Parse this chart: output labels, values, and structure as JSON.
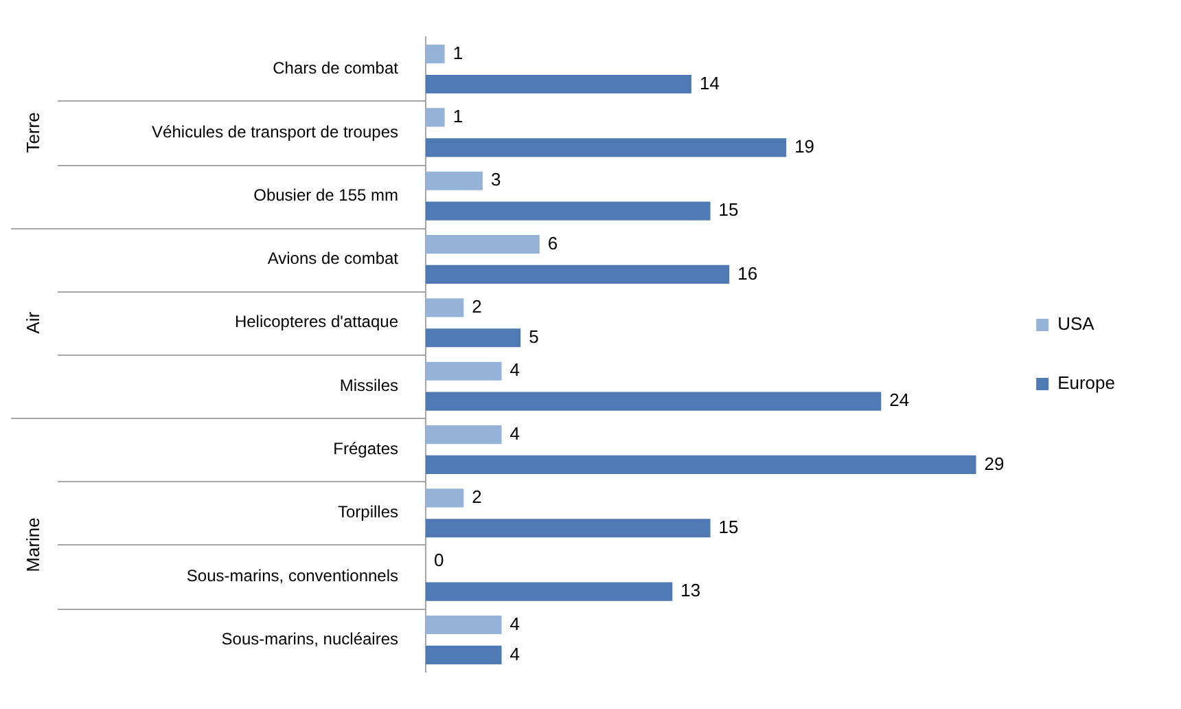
{
  "chart_data": {
    "type": "bar",
    "orientation": "horizontal",
    "categories": [
      "Chars de combat",
      "Véhicules de transport de troupes",
      "Obusier de 155 mm",
      "Avions de combat",
      "Helicopteres d'attaque",
      "Missiles",
      "Frégates",
      "Torpilles",
      "Sous-marins, conventionnels",
      "Sous-marins, nucléaires"
    ],
    "series": [
      {
        "name": "USA",
        "color": "#95b3d7",
        "values": [
          1,
          1,
          3,
          6,
          2,
          4,
          4,
          2,
          0,
          4
        ]
      },
      {
        "name": "Europe",
        "color": "#4f79b3",
        "values": [
          14,
          19,
          15,
          16,
          5,
          24,
          29,
          15,
          13,
          4
        ]
      }
    ],
    "data_labels": true,
    "legend": "right",
    "annotations": [
      "Terre",
      "Air",
      "Marine"
    ]
  }
}
